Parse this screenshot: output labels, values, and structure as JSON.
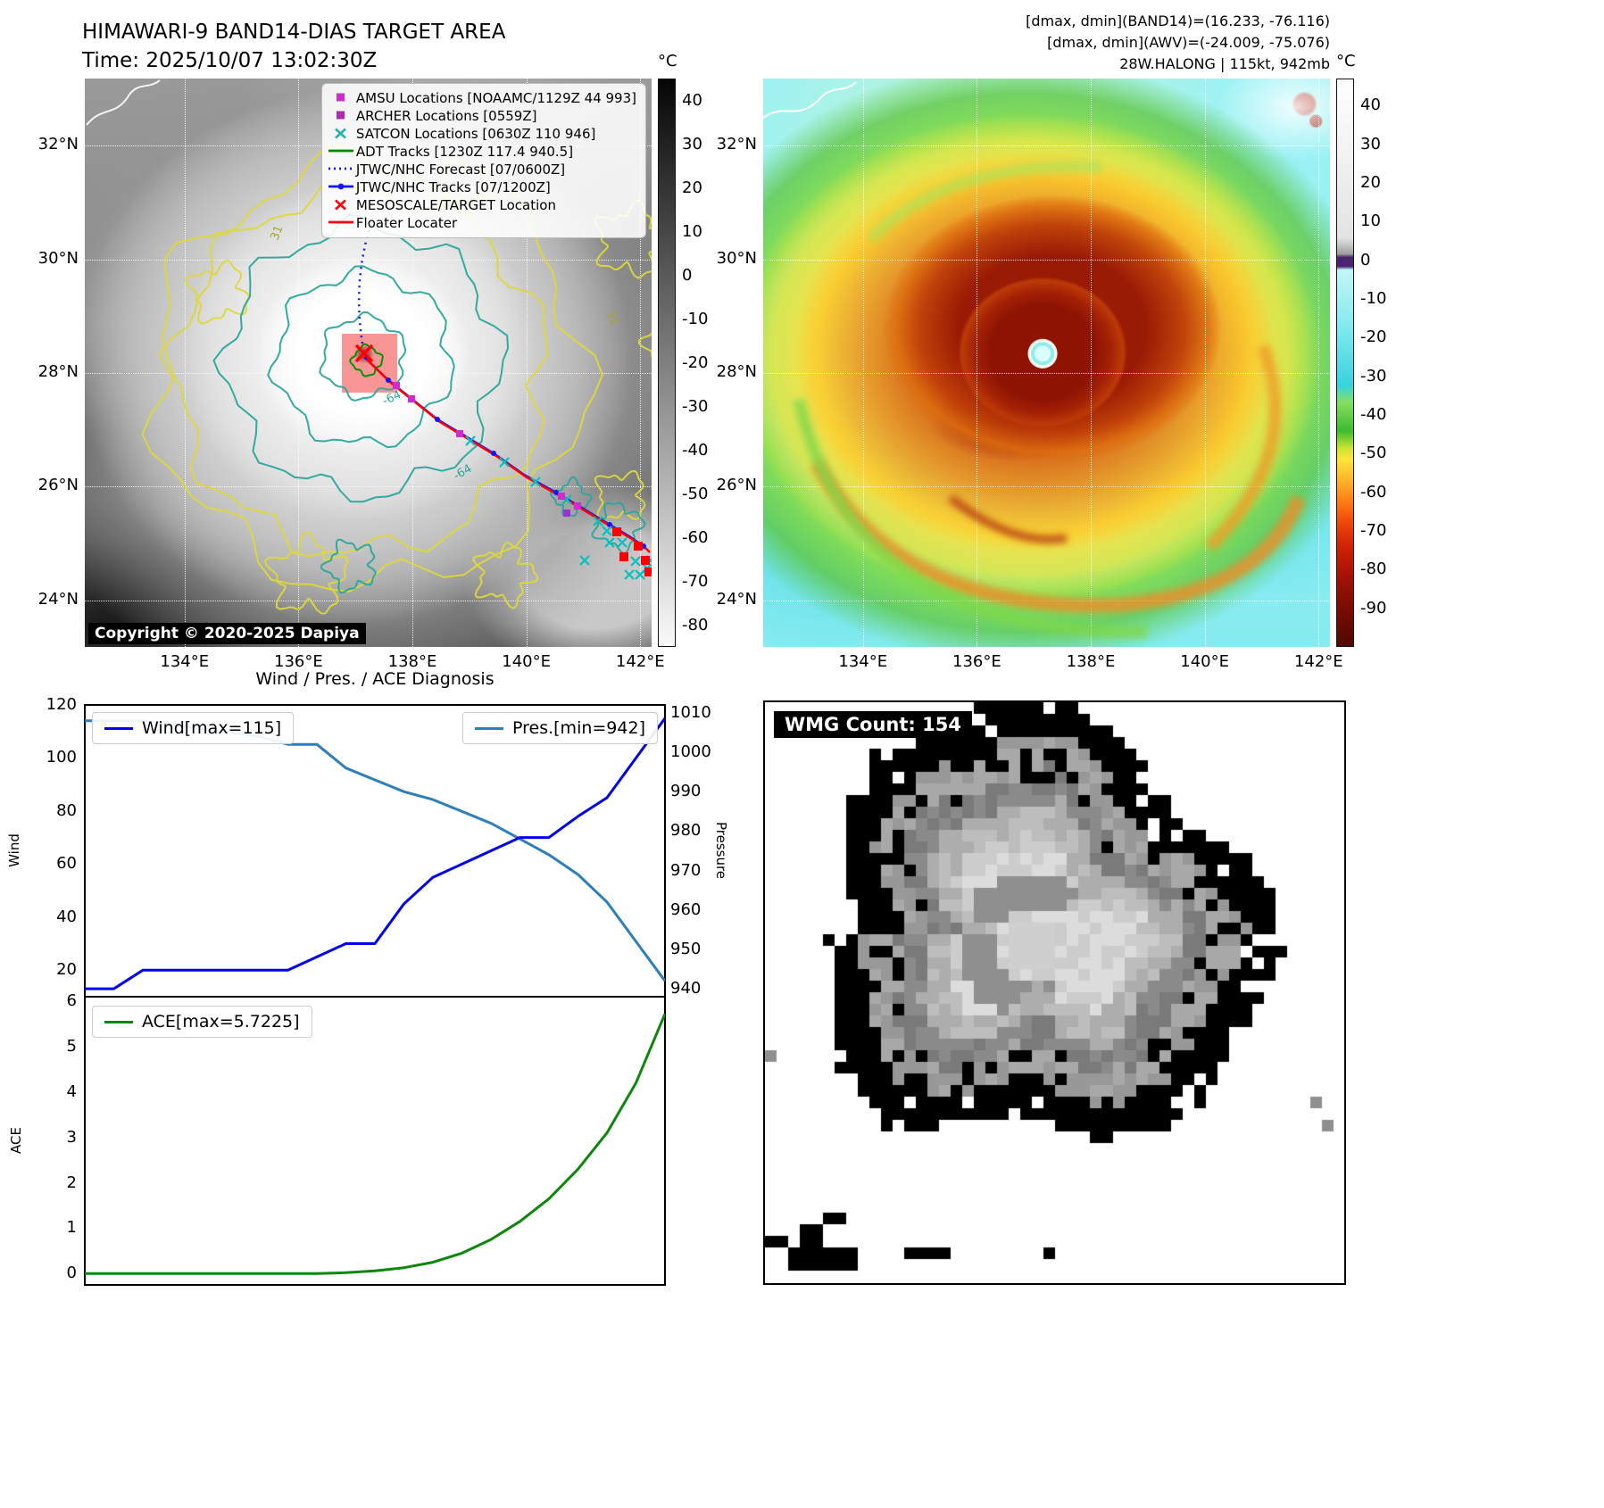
{
  "panel_band14": {
    "title_line1": "HIMAWARI-9 BAND14-DIAS TARGET AREA",
    "title_line2": "Time: 2025/10/07 13:02:30Z",
    "copyright": "Copyright © 2020-2025 Dapiya",
    "lat_ticks": [
      "32°N",
      "30°N",
      "28°N",
      "26°N",
      "24°N"
    ],
    "lon_ticks": [
      "134°E",
      "136°E",
      "138°E",
      "140°E",
      "142°E"
    ],
    "colorbar": {
      "unit": "°C",
      "vmax": 45,
      "vmin": -85,
      "ticks": [
        40,
        30,
        20,
        10,
        0,
        -10,
        -20,
        -30,
        -40,
        -50,
        -60,
        -70,
        -80
      ]
    },
    "contour_labels": [
      "-64",
      "31"
    ],
    "legend": [
      {
        "label": "AMSU Locations [NOAAMC/1129Z 44 993]",
        "marker": "square",
        "color": "#d02ad0"
      },
      {
        "label": "ARCHER Locations [0559Z]",
        "marker": "square",
        "color": "#b02ab0"
      },
      {
        "label": "SATCON Locations [0630Z 110 946]",
        "marker": "x",
        "color": "#20b2aa"
      },
      {
        "label": "ADT Tracks [1230Z 117.4 940.5]",
        "marker": "line",
        "color": "#0a820a"
      },
      {
        "label": "JTWC/NHC Forecast [07/0600Z]",
        "marker": "dotted",
        "color": "#1515ff"
      },
      {
        "label": "JTWC/NHC Tracks [07/1200Z]",
        "marker": "line-dot",
        "color": "#1515ff"
      },
      {
        "label": "MESOSCALE/TARGET Location",
        "marker": "x",
        "color": "#ff0000"
      },
      {
        "label": "Floater Locater",
        "marker": "line",
        "color": "#ff0000"
      }
    ]
  },
  "panel_awv": {
    "header_lines": [
      "[dmax, dmin](BAND14)=(16.233, -76.116)",
      "[dmax, dmin](AWV)=(-24.009, -75.076)",
      "28W.HALONG | 115kt, 942mb"
    ],
    "lat_ticks": [
      "32°N",
      "30°N",
      "28°N",
      "26°N",
      "24°N"
    ],
    "lon_ticks": [
      "134°E",
      "136°E",
      "138°E",
      "140°E",
      "142°E"
    ],
    "colorbar": {
      "unit": "°C",
      "vmax": 47,
      "vmin": -100,
      "ticks": [
        40,
        30,
        20,
        10,
        0,
        -10,
        -20,
        -30,
        -40,
        -50,
        -60,
        -70,
        -80,
        -90
      ]
    }
  },
  "wmg": {
    "label": "WMG Count: 154"
  },
  "chart_data": [
    {
      "type": "line",
      "title": "Wind / Pres. / ACE Diagnosis",
      "x": [
        0,
        1,
        2,
        3,
        4,
        5,
        6,
        7,
        8,
        9,
        10,
        11,
        12,
        13,
        14,
        15,
        16,
        17,
        18,
        19,
        20
      ],
      "series": [
        {
          "name": "Wind[max=115]",
          "axis": "left",
          "color": "#0000ee",
          "values": [
            13,
            13,
            20,
            20,
            20,
            20,
            20,
            20,
            25,
            30,
            30,
            45,
            55,
            60,
            65,
            70,
            70,
            78,
            85,
            100,
            115
          ]
        },
        {
          "name": "Pres.[min=942]",
          "axis": "right",
          "color": "#2e7fb8",
          "values": [
            1008,
            1008,
            1008,
            1007,
            1006,
            1005,
            1004,
            1002,
            1002,
            996,
            993,
            990,
            988,
            985,
            982,
            978,
            974,
            969,
            962,
            952,
            942
          ]
        }
      ],
      "ylabel": "Wind",
      "y2label": "Pressure",
      "ylim": [
        10,
        120
      ],
      "y2lim": [
        938,
        1012
      ],
      "yticks": [
        120,
        100,
        80,
        60,
        40,
        20
      ],
      "y2ticks": [
        1010,
        1000,
        990,
        980,
        970,
        960,
        950,
        940
      ],
      "legend_position": "upper-left / upper-right",
      "grid": false
    },
    {
      "type": "line",
      "x": [
        0,
        1,
        2,
        3,
        4,
        5,
        6,
        7,
        8,
        9,
        10,
        11,
        12,
        13,
        14,
        15,
        16,
        17,
        18,
        19,
        20
      ],
      "series": [
        {
          "name": "ACE[max=5.7225]",
          "axis": "left",
          "color": "#0c870c",
          "values": [
            0,
            0,
            0,
            0,
            0,
            0,
            0,
            0,
            0,
            0.02,
            0.06,
            0.13,
            0.25,
            0.45,
            0.75,
            1.15,
            1.65,
            2.3,
            3.1,
            4.2,
            5.7225
          ]
        }
      ],
      "ylabel": "ACE",
      "ylim": [
        -0.25,
        6.1
      ],
      "yticks": [
        6,
        5,
        4,
        3,
        2,
        1,
        0
      ],
      "legend_position": "upper-left",
      "grid": false
    }
  ]
}
